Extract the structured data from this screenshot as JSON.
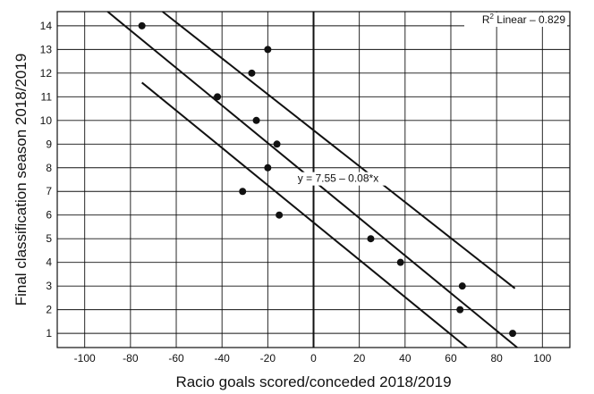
{
  "chart_data": {
    "type": "scatter",
    "xlabel": "Racio goals scored/conceded 2018/2019",
    "ylabel": "Final classification season 2018/2019",
    "xlim": [
      -112,
      112
    ],
    "ylim": [
      0.4,
      14.6
    ],
    "x_ticks": [
      -100,
      -80,
      -60,
      -40,
      -20,
      0,
      20,
      40,
      60,
      80,
      100
    ],
    "y_ticks": [
      1,
      2,
      3,
      4,
      5,
      6,
      7,
      8,
      9,
      10,
      11,
      12,
      13,
      14
    ],
    "grid": true,
    "points": [
      {
        "x": -75,
        "y": 14
      },
      {
        "x": -20,
        "y": 13
      },
      {
        "x": -27,
        "y": 12
      },
      {
        "x": -42,
        "y": 11
      },
      {
        "x": -25,
        "y": 10
      },
      {
        "x": -16,
        "y": 9
      },
      {
        "x": -20,
        "y": 8
      },
      {
        "x": -31,
        "y": 7
      },
      {
        "x": -15,
        "y": 6
      },
      {
        "x": 25,
        "y": 5
      },
      {
        "x": 38,
        "y": 4
      },
      {
        "x": 65,
        "y": 3
      },
      {
        "x": 64,
        "y": 2
      },
      {
        "x": 87,
        "y": 1
      }
    ],
    "fit_line": {
      "x": [
        -90,
        89
      ],
      "y": [
        14.6,
        0.4
      ]
    },
    "band_upper": {
      "x": [
        -66,
        88
      ],
      "y": [
        14.6,
        2.9
      ]
    },
    "band_lower": {
      "x": [
        -75,
        67
      ],
      "y": [
        11.6,
        0.4
      ]
    },
    "equation": "y = 7.55 – 0.08*x",
    "equation_anchor": {
      "x": -12,
      "y": 7.4
    },
    "r2_label": "R",
    "r2_sup": "2",
    "r2_text": " Linear – 0.829"
  }
}
